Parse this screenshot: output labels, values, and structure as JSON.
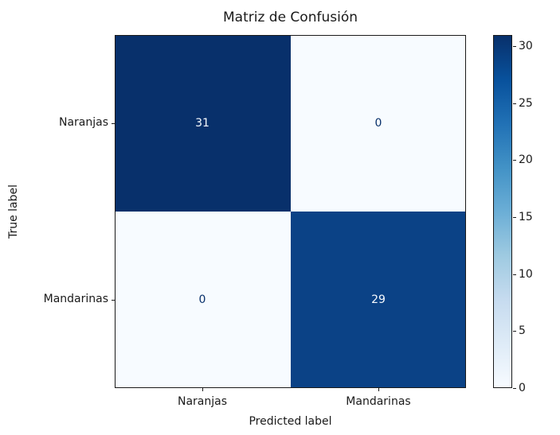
{
  "chart_data": {
    "type": "heatmap",
    "title": "Matriz de Confusión",
    "xlabel": "Predicted label",
    "ylabel": "True label",
    "x_tick_labels": [
      "Naranjas",
      "Mandarinas"
    ],
    "y_tick_labels": [
      "Naranjas",
      "Mandarinas"
    ],
    "matrix": [
      [
        31,
        0
      ],
      [
        0,
        29
      ]
    ],
    "vmin": 0,
    "vmax": 31,
    "colormap": "Blues",
    "grid": false,
    "legend_position": "right-colorbar",
    "colorbar": {
      "ticks": [
        0,
        5,
        10,
        15,
        20,
        25,
        30
      ],
      "gradient_stops": [
        "#f7fbff",
        "#deebf7",
        "#c6dbef",
        "#9ecae1",
        "#6baed6",
        "#4292c6",
        "#2171b5",
        "#08519c",
        "#08306b"
      ]
    },
    "cell_colors": [
      [
        "#08306b",
        "#f7fbff"
      ],
      [
        "#f7fbff",
        "#0b4286"
      ]
    ],
    "cell_text_colors": [
      [
        "#f7fbff",
        "#08306b"
      ],
      [
        "#08306b",
        "#f7fbff"
      ]
    ],
    "axis_color": "#1a1a1a"
  }
}
